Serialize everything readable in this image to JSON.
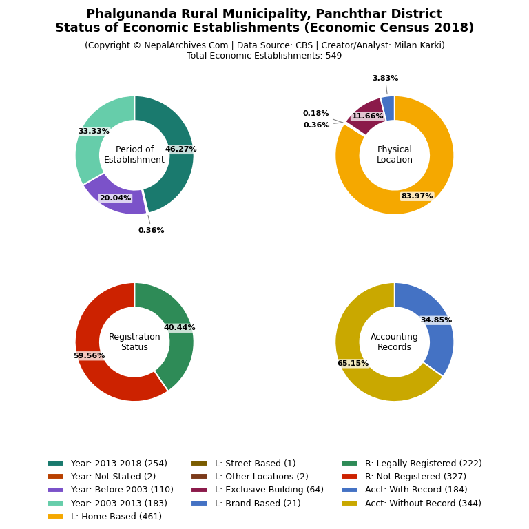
{
  "title": "Phalgunanda Rural Municipality, Panchthar District\nStatus of Economic Establishments (Economic Census 2018)",
  "subtitle": "(Copyright © NepalArchives.Com | Data Source: CBS | Creator/Analyst: Milan Karki)\nTotal Economic Establishments: 549",
  "legend": "lower center",
  "chart_data": [
    {
      "type": "pie",
      "title": "Period of\nEstablishment",
      "categories": [
        "Year: 2013-2018 (254)",
        "Year: Not Stated (2)",
        "Year: Before 2003 (110)",
        "Year: 2003-2013 (183)"
      ],
      "values": [
        46.27,
        0.36,
        20.04,
        33.33
      ],
      "value_labels": [
        "46.27%",
        "0.36%",
        "20.04%",
        "33.33%"
      ],
      "colors": [
        "#1a7a6e",
        "#b84000",
        "#7b52c9",
        "#66cdaa"
      ],
      "data_labels": true
    },
    {
      "type": "pie",
      "title": "Physical\nLocation",
      "categories": [
        "L: Home Based (461)",
        "L: Street Based (1)",
        "L: Other Locations (2)",
        "L: Exclusive Building (64)",
        "L: Brand Based (21)"
      ],
      "values": [
        83.97,
        0.18,
        0.36,
        11.66,
        3.83
      ],
      "value_labels": [
        "83.97%",
        "0.18%",
        "0.36%",
        "11.66%",
        "3.83%"
      ],
      "colors": [
        "#f5a800",
        "#7a5c00",
        "#7b3a1a",
        "#8b1a4a",
        "#4472c4"
      ],
      "data_labels": true
    },
    {
      "type": "pie",
      "title": "Registration\nStatus",
      "categories": [
        "R: Legally Registered (222)",
        "R: Not Registered (327)"
      ],
      "values": [
        40.44,
        59.56
      ],
      "value_labels": [
        "40.44%",
        "59.56%"
      ],
      "colors": [
        "#2e8b57",
        "#cc2200"
      ],
      "data_labels": true
    },
    {
      "type": "pie",
      "title": "Accounting\nRecords",
      "categories": [
        "Acct: With Record (184)",
        "Acct: Without Record (344)"
      ],
      "values": [
        34.85,
        65.15
      ],
      "value_labels": [
        "34.85%",
        "65.15%"
      ],
      "colors": [
        "#4472c4",
        "#c9a800"
      ],
      "data_labels": true
    }
  ]
}
